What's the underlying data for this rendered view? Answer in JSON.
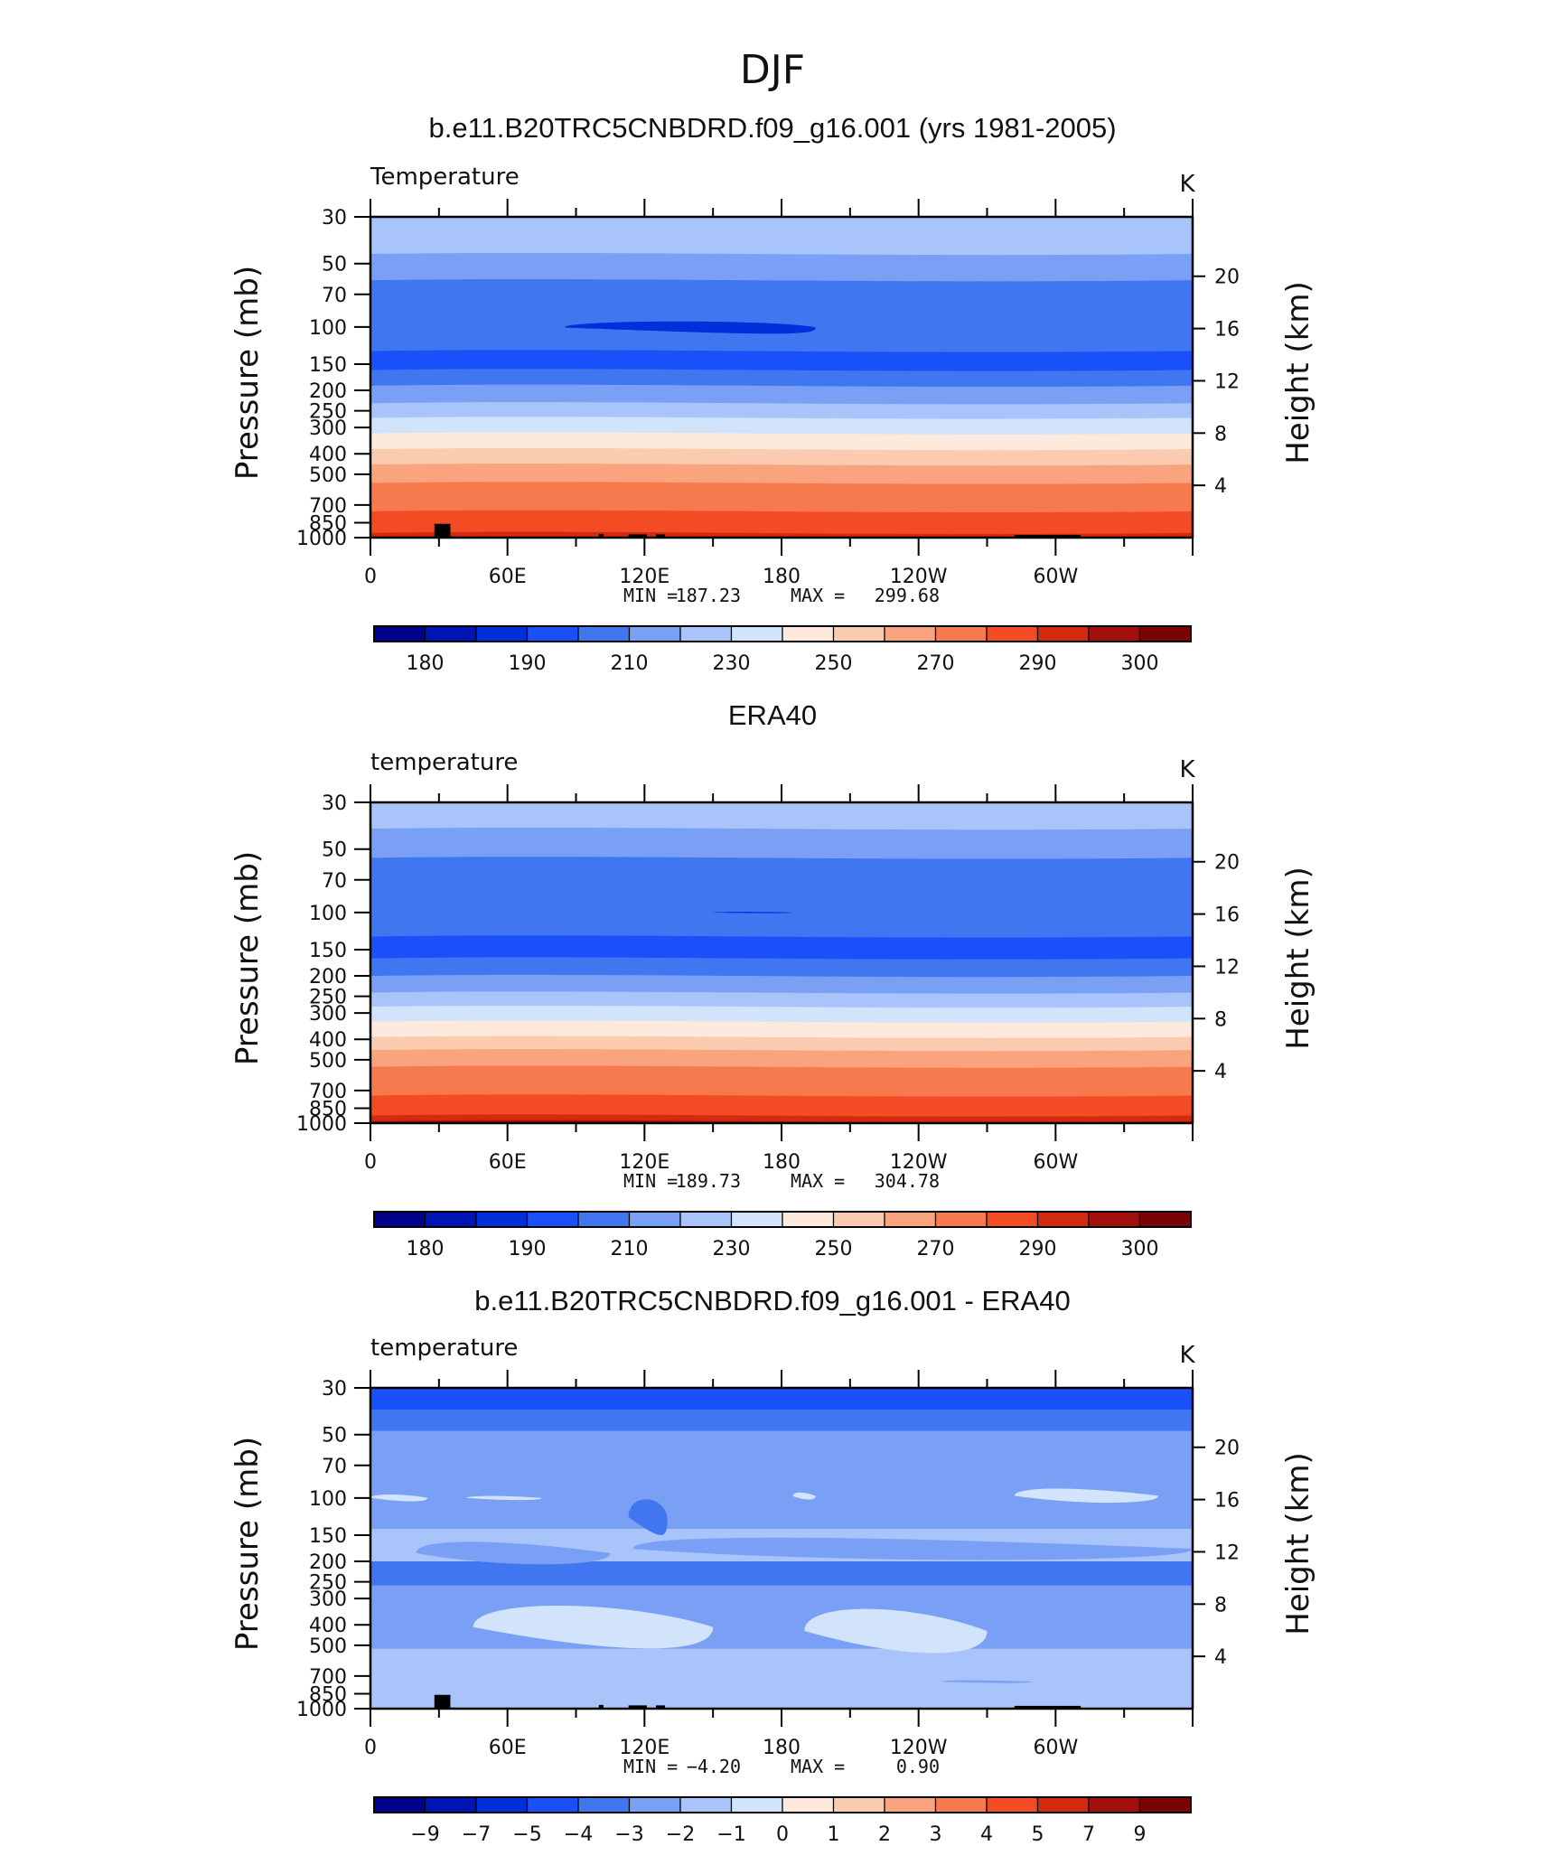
{
  "figure_title": "DJF",
  "colors": {
    "temperature_scale": [
      "#00008b",
      "#0016b4",
      "#0030d9",
      "#1a50fa",
      "#4076f0",
      "#7aa0f5",
      "#a8c4fa",
      "#d2e4fc",
      "#fdeadc",
      "#fbcbb0",
      "#f9a47f",
      "#f77a4f",
      "#f34b24",
      "#d42a0e",
      "#a30f0a",
      "#7a0403"
    ],
    "difference_scale": [
      "#00008b",
      "#0016b4",
      "#0030d9",
      "#1a50fa",
      "#4076f0",
      "#7aa0f5",
      "#a8c4fa",
      "#d2e4fc",
      "#fdeadc",
      "#fbcbb0",
      "#f9a47f",
      "#f77a4f",
      "#f34b24",
      "#d42a0e",
      "#a30f0a",
      "#7a0403"
    ],
    "topography": "#000000"
  },
  "chart_data": [
    {
      "type": "heatmap",
      "title": "b.e11.B20TRC5CNBDRD.f09_g16.001 (yrs 1981-2005)",
      "variable_label": "Temperature",
      "units": "K",
      "ylabel": "Pressure  (mb)",
      "ylabel_right": "Height  (km)",
      "x_ticks": [
        "0",
        "60E",
        "120E",
        "180",
        "120W",
        "60W"
      ],
      "x_tick_lon": [
        0,
        60,
        120,
        180,
        240,
        300
      ],
      "xlim": [
        0,
        360
      ],
      "y_ticks": [
        "30",
        "50",
        "70",
        "100",
        "150",
        "200",
        "250",
        "300",
        "400",
        "500",
        "700",
        "850",
        "1000"
      ],
      "y_tick_values": [
        30,
        50,
        70,
        100,
        150,
        200,
        250,
        300,
        400,
        500,
        700,
        850,
        1000
      ],
      "ylim": [
        1000,
        30
      ],
      "y_scale": "log",
      "right_ticks": [
        "20",
        "16",
        "12",
        "8",
        "4"
      ],
      "right_tick_km": [
        20,
        16,
        12,
        8,
        4
      ],
      "stats": {
        "min_label": "MIN =",
        "min": "187.23",
        "max_label": "MAX =",
        "max": "299.68"
      },
      "colorbar_labels": [
        "180",
        "190",
        "210",
        "230",
        "250",
        "270",
        "290",
        "300"
      ],
      "profile_p": [
        30,
        45,
        60,
        130,
        160,
        190,
        230,
        270,
        320,
        380,
        450,
        550,
        650,
        750,
        850,
        950,
        1000
      ],
      "profile_level": [
        6,
        5,
        4,
        3,
        4,
        5,
        6,
        7,
        8,
        9,
        10,
        11,
        11,
        12,
        12,
        13,
        13
      ],
      "core": {
        "level": 2,
        "lon": [
          85,
          180,
          195
        ],
        "p": [
          92,
          110
        ]
      },
      "topography": true
    },
    {
      "type": "heatmap",
      "title": "ERA40",
      "variable_label": "temperature",
      "units": "K",
      "ylabel": "Pressure  (mb)",
      "ylabel_right": "Height  (km)",
      "x_ticks": [
        "0",
        "60E",
        "120E",
        "180",
        "120W",
        "60W"
      ],
      "x_tick_lon": [
        0,
        60,
        120,
        180,
        240,
        300
      ],
      "xlim": [
        0,
        360
      ],
      "y_ticks": [
        "30",
        "50",
        "70",
        "100",
        "150",
        "200",
        "250",
        "300",
        "400",
        "500",
        "700",
        "850",
        "1000"
      ],
      "y_tick_values": [
        30,
        50,
        70,
        100,
        150,
        200,
        250,
        300,
        400,
        500,
        700,
        850,
        1000
      ],
      "ylim": [
        1000,
        30
      ],
      "y_scale": "log",
      "right_ticks": [
        "20",
        "16",
        "12",
        "8",
        "4"
      ],
      "right_tick_km": [
        20,
        16,
        12,
        8,
        4
      ],
      "stats": {
        "min_label": "MIN =",
        "min": "189.73",
        "max_label": "MAX =",
        "max": "304.78"
      },
      "colorbar_labels": [
        "180",
        "190",
        "210",
        "230",
        "250",
        "270",
        "290",
        "300"
      ],
      "profile_p": [
        30,
        40,
        55,
        130,
        165,
        200,
        240,
        280,
        330,
        390,
        450,
        540,
        640,
        740,
        830,
        920,
        980
      ],
      "profile_level": [
        6,
        5,
        4,
        3,
        4,
        5,
        6,
        7,
        8,
        9,
        10,
        11,
        11,
        12,
        12,
        13,
        14
      ],
      "core": {
        "level": 2,
        "lon": [
          150,
          170,
          185
        ],
        "p": [
          99,
          101
        ]
      },
      "topography": false
    },
    {
      "type": "heatmap",
      "title": "b.e11.B20TRC5CNBDRD.f09_g16.001 - ERA40",
      "variable_label": "temperature",
      "units": "K",
      "ylabel": "Pressure  (mb)",
      "ylabel_right": "Height  (km)",
      "x_ticks": [
        "0",
        "60E",
        "120E",
        "180",
        "120W",
        "60W"
      ],
      "x_tick_lon": [
        0,
        60,
        120,
        180,
        240,
        300
      ],
      "xlim": [
        0,
        360
      ],
      "y_ticks": [
        "30",
        "50",
        "70",
        "100",
        "150",
        "200",
        "250",
        "300",
        "400",
        "500",
        "700",
        "850",
        "1000"
      ],
      "y_tick_values": [
        30,
        50,
        70,
        100,
        150,
        200,
        250,
        300,
        400,
        500,
        700,
        850,
        1000
      ],
      "ylim": [
        1000,
        30
      ],
      "y_scale": "log",
      "right_ticks": [
        "20",
        "16",
        "12",
        "8",
        "4"
      ],
      "right_tick_km": [
        20,
        16,
        12,
        8,
        4
      ],
      "stats": {
        "min_label": "MIN =",
        "min": "−4.20",
        "max_label": "MAX =",
        "max": "0.90"
      },
      "colorbar_labels": [
        "−9",
        "−7",
        "−5",
        "−4",
        "−3",
        "−2",
        "−1",
        "0",
        "1",
        "2",
        "3",
        "4",
        "5",
        "7",
        "9"
      ],
      "profile_p": [
        30,
        38,
        48,
        140,
        200,
        260,
        320,
        520,
        650,
        1000
      ],
      "profile_level": [
        3,
        4,
        5,
        6,
        4,
        5,
        5,
        6,
        6,
        6
      ],
      "patches": [
        {
          "level": 7,
          "lon": [
            0,
            15,
            25
          ],
          "p": [
            95,
            105
          ]
        },
        {
          "level": 7,
          "lon": [
            42,
            60,
            75
          ],
          "p": [
            97,
            103
          ]
        },
        {
          "level": 7,
          "lon": [
            185,
            190,
            195
          ],
          "p": [
            93,
            103
          ]
        },
        {
          "level": 7,
          "lon": [
            282,
            310,
            345
          ],
          "p": [
            88,
            108
          ]
        },
        {
          "level": 5,
          "lon": [
            20,
            55,
            105
          ],
          "p": [
            155,
            215
          ]
        },
        {
          "level": 5,
          "lon": [
            115,
            200,
            360
          ],
          "p": [
            148,
            205
          ]
        },
        {
          "level": 4,
          "lon": [
            360,
            360,
            360
          ],
          "p": [
            35,
            40
          ]
        },
        {
          "level": 7,
          "lon": [
            45,
            110,
            150
          ],
          "p": [
            300,
            560
          ]
        },
        {
          "level": 7,
          "lon": [
            190,
            235,
            270
          ],
          "p": [
            310,
            590
          ]
        },
        {
          "level": 4,
          "lon": [
            113,
            128,
            130
          ],
          "p": [
            95,
            160
          ]
        },
        {
          "level": 5,
          "lon": [
            250,
            270,
            290
          ],
          "p": [
            730,
            760
          ]
        }
      ],
      "topography": true
    }
  ]
}
